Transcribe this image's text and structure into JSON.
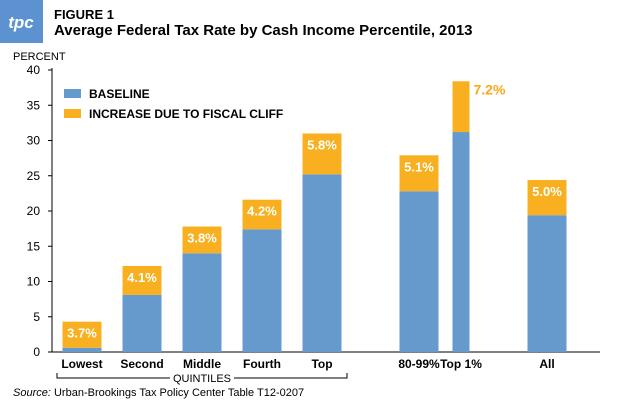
{
  "header": {
    "figure_label": "FIGURE 1",
    "title": "Average Federal Tax Rate by Cash Income Percentile, 2013",
    "logo_text": "tpc"
  },
  "source": {
    "label": "Source:",
    "text": "Urban-Brookings Tax Policy Center Table T12-0207"
  },
  "colors": {
    "baseline": "#6699cc",
    "increase": "#f8b020",
    "data_label": "#f8a81c",
    "axis": "#000000",
    "logo": "#5b92cf"
  },
  "chart_data": {
    "type": "bar",
    "stacked": true,
    "ylabel": "PERCENT",
    "ylim": [
      0,
      40
    ],
    "yticks": [
      0,
      5,
      10,
      15,
      20,
      25,
      30,
      35,
      40
    ],
    "grid": false,
    "legend_position": "top-left",
    "group_label": "QUINTILES",
    "categories": [
      "Lowest",
      "Second",
      "Middle",
      "Fourth",
      "Top",
      "80-99%",
      "Top 1%",
      "All"
    ],
    "series": [
      {
        "name": "BASELINE",
        "values": [
          0.6,
          8.1,
          14.0,
          17.4,
          25.2,
          22.8,
          31.2,
          19.4
        ]
      },
      {
        "name": "INCREASE DUE TO FISCAL CLIFF",
        "values": [
          3.7,
          4.1,
          3.8,
          4.2,
          5.8,
          5.1,
          7.2,
          5.0
        ]
      }
    ],
    "data_labels": [
      "3.7%",
      "4.1%",
      "3.8%",
      "4.2%",
      "5.8%",
      "5.1%",
      "7.2%",
      "5.0%"
    ]
  }
}
